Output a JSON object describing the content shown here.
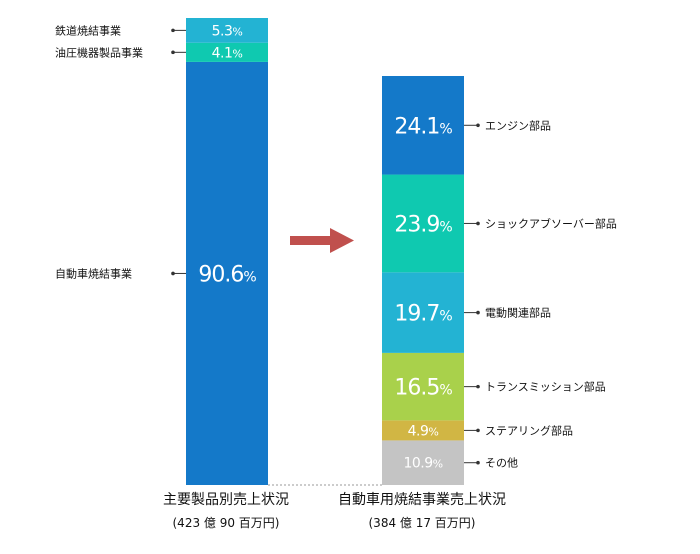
{
  "chart_data": [
    {
      "type": "bar",
      "stacked": true,
      "caption": "主要製品別売上状況",
      "total": "(423 億 90 百万円)",
      "series": [
        {
          "name": "自動車焼結事業",
          "value": 90.6,
          "label": "90.6%",
          "color": "#1479c9"
        },
        {
          "name": "油圧機器製品事業",
          "value": 4.1,
          "label": "4.1%",
          "color": "#0fc9b0"
        },
        {
          "name": "鉄道焼結事業",
          "value": 5.3,
          "label": "5.3%",
          "color": "#23b3d3"
        }
      ]
    },
    {
      "type": "bar",
      "stacked": true,
      "caption": "自動車用焼結事業売上状況",
      "total": "(384 億 17 百万円)",
      "series": [
        {
          "name": "その他",
          "value": 10.9,
          "label": "10.9%",
          "color": "#c4c4c4"
        },
        {
          "name": "ステアリング部品",
          "value": 4.9,
          "label": "4.9%",
          "color": "#d1b644"
        },
        {
          "name": "トランスミッション部品",
          "value": 16.5,
          "label": "16.5%",
          "color": "#a9d14b"
        },
        {
          "name": "電動関連部品",
          "value": 19.7,
          "label": "19.7%",
          "color": "#23b3d3"
        },
        {
          "name": "ショックアブソーバー部品",
          "value": 23.9,
          "label": "23.9%",
          "color": "#0fc9b0"
        },
        {
          "name": "エンジン部品",
          "value": 24.1,
          "label": "24.1%",
          "color": "#1479c9"
        }
      ]
    }
  ],
  "arrow_color": "#c0504d"
}
